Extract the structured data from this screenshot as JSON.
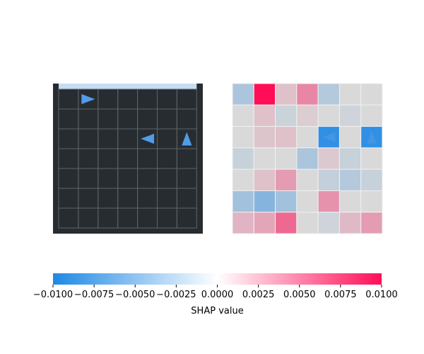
{
  "colors": {
    "negative": "#1e88e5",
    "neutral": "#ffffff",
    "positive": "#ff0d57",
    "env_background": "#272c31",
    "env_grid": "#5e6368",
    "env_wall_top": "#c5ddf3",
    "agent": "#4f9ce8",
    "heatmap_grid": "#f0f0f0"
  },
  "chart_data": {
    "type": "heatmap",
    "environment": {
      "rows": 7,
      "cols": 7,
      "markers": [
        {
          "kind": "arrow",
          "row": 0,
          "col": 1,
          "direction": "right"
        },
        {
          "kind": "arrow",
          "row": 2,
          "col": 4,
          "direction": "left"
        },
        {
          "kind": "arrow",
          "row": 2,
          "col": 6,
          "direction": "up"
        }
      ]
    },
    "shap": {
      "rows": 7,
      "cols": 7,
      "vmin": -0.01,
      "vmax": 0.01,
      "values": [
        [
          -0.0025,
          0.01,
          0.0012,
          0.004,
          -0.002,
          0.0,
          0.0
        ],
        [
          0.0,
          0.0012,
          -0.0008,
          0.0006,
          0.0,
          -0.0006,
          0.0
        ],
        [
          0.0,
          0.001,
          0.0012,
          0.0,
          -0.009,
          0.0,
          -0.009
        ],
        [
          -0.001,
          0.0,
          0.0,
          -0.0025,
          0.0008,
          -0.001,
          0.0
        ],
        [
          0.0,
          0.0012,
          0.003,
          0.0,
          -0.0012,
          -0.002,
          -0.001
        ],
        [
          -0.003,
          -0.0045,
          -0.003,
          0.0,
          0.0035,
          0.0,
          0.0
        ],
        [
          0.0018,
          0.0025,
          0.0055,
          0.0,
          -0.0006,
          0.0015,
          0.003
        ]
      ],
      "markers": [
        {
          "row": 2,
          "col": 4,
          "direction": "left"
        },
        {
          "row": 2,
          "col": 6,
          "direction": "up"
        }
      ]
    },
    "colorbar": {
      "label": "SHAP value",
      "ticks": [
        -0.01,
        -0.0075,
        -0.005,
        -0.0025,
        0,
        0.0025,
        0.005,
        0.0075,
        0.01
      ],
      "tick_labels": [
        "−0.0100",
        "−0.0075",
        "−0.0050",
        "−0.0025",
        "0.0000",
        "0.0025",
        "0.0050",
        "0.0075",
        "0.0100"
      ]
    }
  }
}
